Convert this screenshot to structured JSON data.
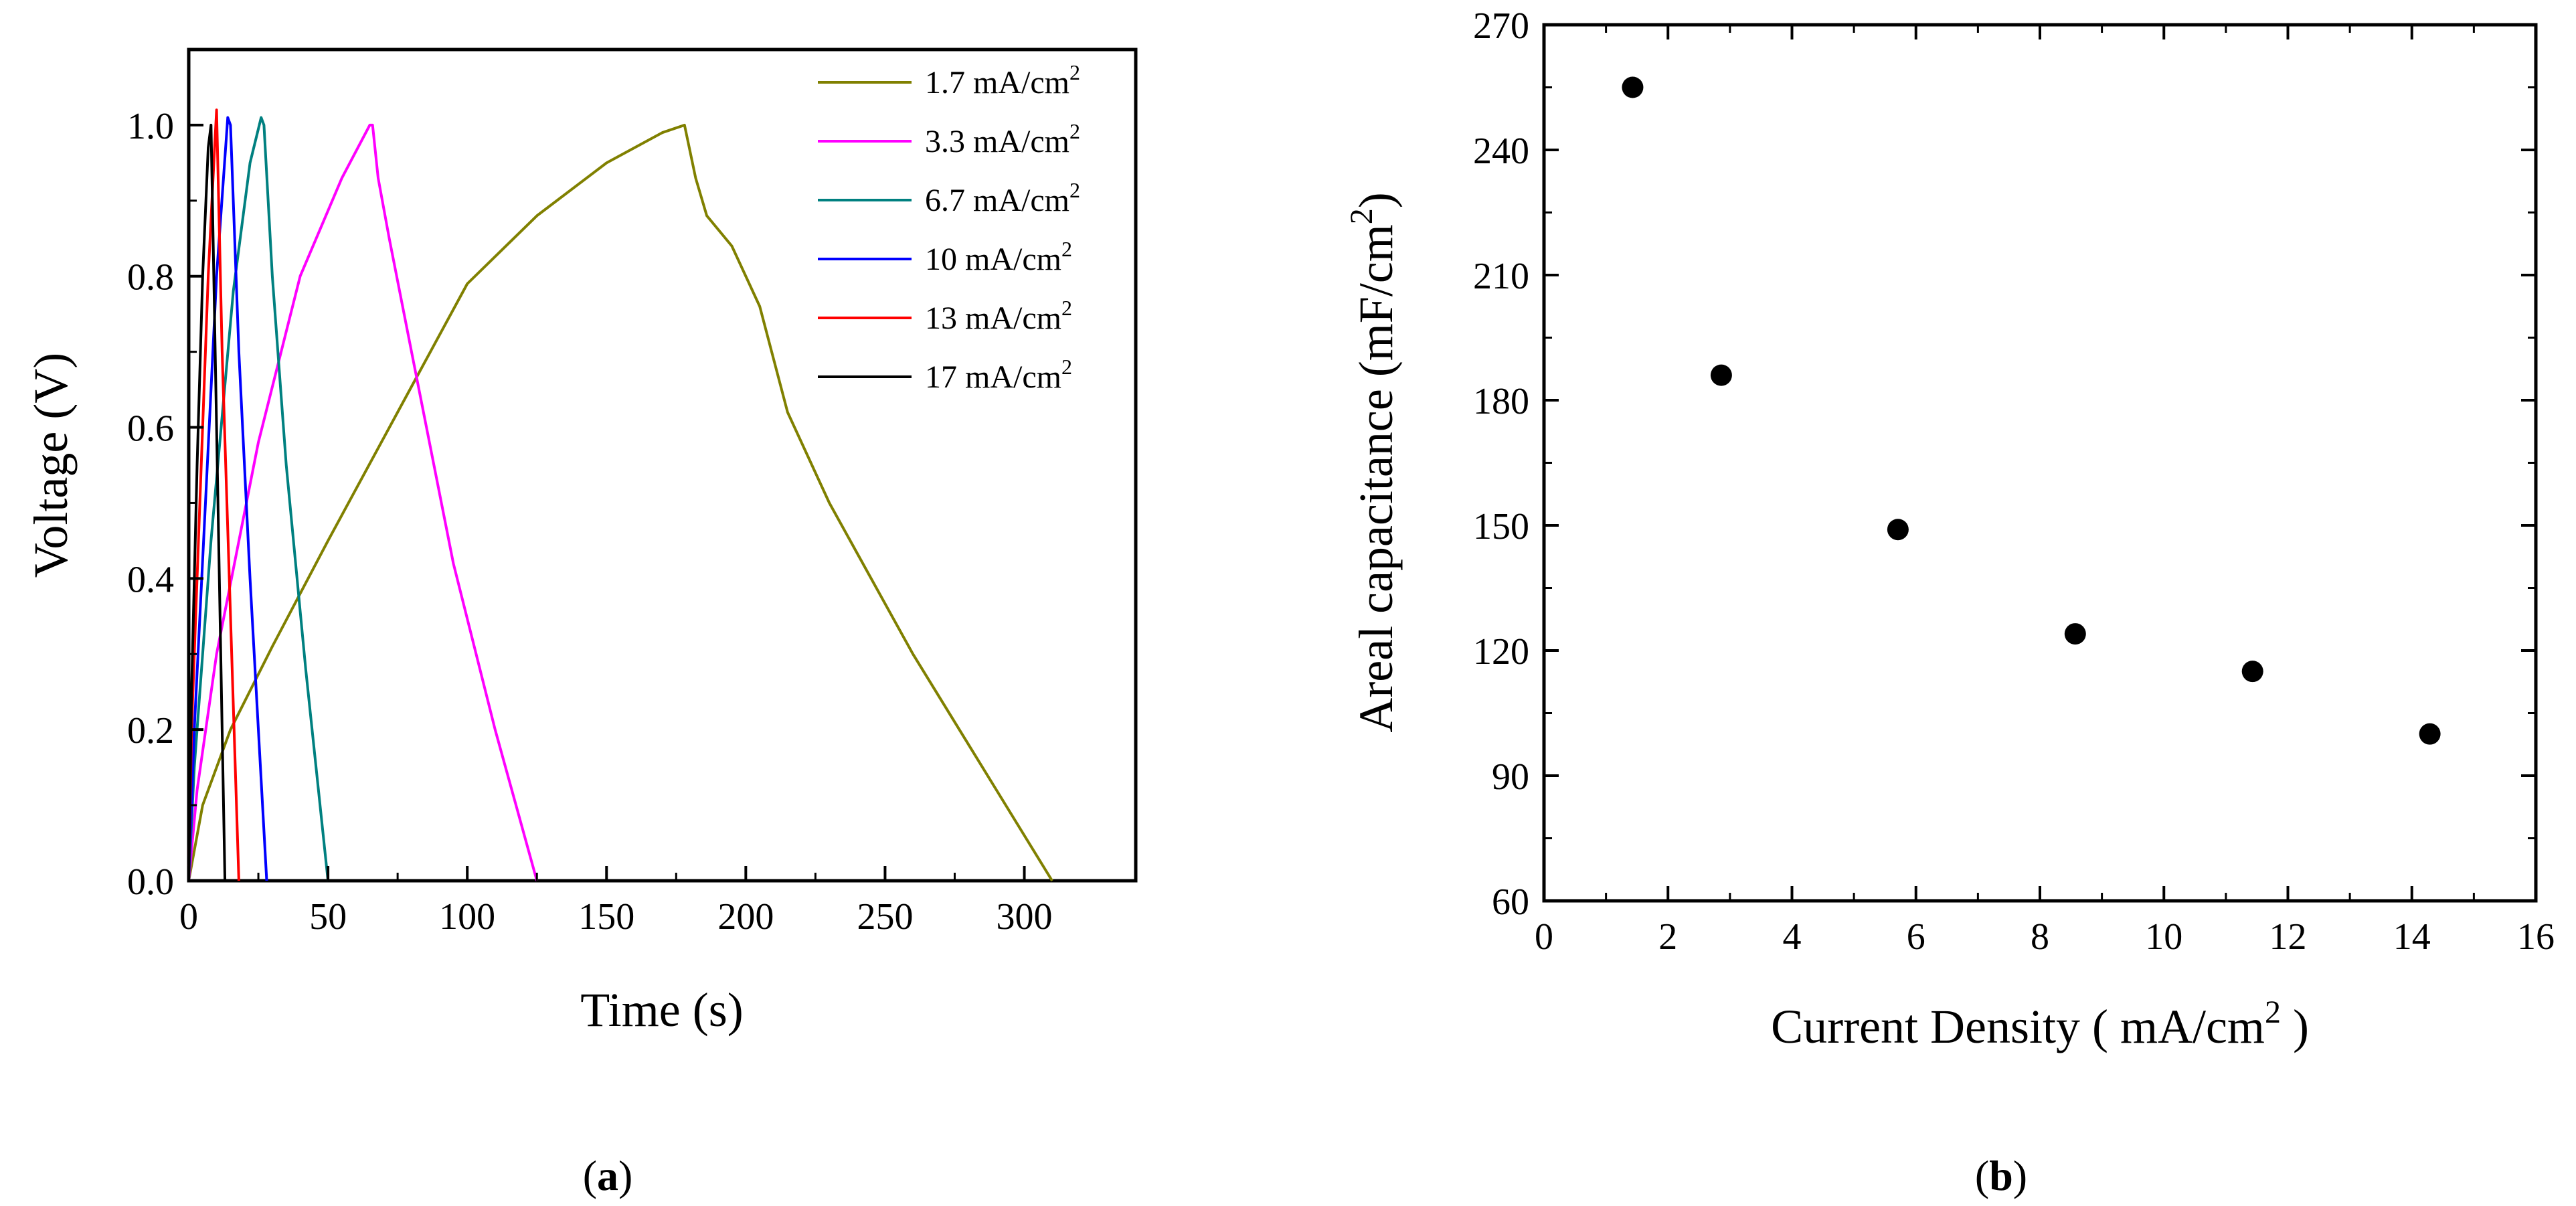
{
  "chart_data": [
    {
      "type": "line",
      "panel_label": "a",
      "xlabel": "Time (s)",
      "ylabel": "Voltage (V)",
      "xlim": [
        0,
        340
      ],
      "ylim": [
        0,
        1.1
      ],
      "x_ticks": [
        0,
        50,
        100,
        150,
        200,
        250,
        300
      ],
      "y_ticks": [
        0.0,
        0.2,
        0.4,
        0.6,
        0.8,
        1.0
      ],
      "legend_position": "top-right",
      "series": [
        {
          "name": "1.7 mA/cm",
          "sup": "2",
          "color": "#808000",
          "x": [
            0,
            5,
            15,
            30,
            50,
            75,
            100,
            125,
            150,
            170,
            178,
            182,
            186,
            195,
            205,
            215,
            230,
            260,
            290,
            310
          ],
          "y": [
            0,
            0.1,
            0.2,
            0.31,
            0.45,
            0.62,
            0.79,
            0.88,
            0.95,
            0.99,
            1.0,
            0.93,
            0.88,
            0.84,
            0.76,
            0.62,
            0.5,
            0.3,
            0.12,
            0
          ]
        },
        {
          "name": "3.3 mA/cm",
          "sup": "2",
          "color": "#ff00ff",
          "x": [
            0,
            3,
            10,
            25,
            40,
            55,
            65,
            66,
            68,
            72,
            80,
            95,
            110,
            125
          ],
          "y": [
            0,
            0.12,
            0.3,
            0.58,
            0.8,
            0.93,
            1.0,
            1.0,
            0.93,
            0.85,
            0.7,
            0.42,
            0.2,
            0
          ]
        },
        {
          "name": "6.7 mA/cm",
          "sup": "2",
          "color": "#008080",
          "x": [
            0,
            2,
            8,
            16,
            22,
            26,
            27,
            30,
            35,
            42,
            50
          ],
          "y": [
            0,
            0.15,
            0.45,
            0.78,
            0.95,
            1.01,
            1.0,
            0.8,
            0.55,
            0.28,
            0
          ]
        },
        {
          "name": "10  mA/cm",
          "sup": "2",
          "color": "#0000ff",
          "x": [
            0,
            2,
            6,
            10,
            14,
            15,
            18,
            22,
            28
          ],
          "y": [
            0,
            0.2,
            0.5,
            0.8,
            1.01,
            1.0,
            0.7,
            0.4,
            0
          ]
        },
        {
          "name": "13  mA/cm",
          "sup": "2",
          "color": "#ff0000",
          "x": [
            0,
            1,
            4,
            7,
            9,
            10,
            12,
            15,
            18
          ],
          "y": [
            0,
            0.2,
            0.5,
            0.8,
            0.95,
            1.02,
            0.7,
            0.35,
            0
          ]
        },
        {
          "name": "17  mA/cm",
          "sup": "2",
          "color": "#000000",
          "x": [
            0,
            1,
            3,
            5,
            7,
            8,
            10,
            12,
            13
          ],
          "y": [
            0,
            0.25,
            0.55,
            0.8,
            0.97,
            1.0,
            0.6,
            0.2,
            0
          ]
        }
      ]
    },
    {
      "type": "scatter",
      "panel_label": "b",
      "xlabel": "Current Density ( mA/cm",
      "xlabel_sup": "2",
      "xlabel_end": " )",
      "ylabel": "Areal capacitance (mF/cm",
      "ylabel_sup": "2",
      "ylabel_end": ")",
      "xlim": [
        0,
        16
      ],
      "ylim": [
        60,
        270
      ],
      "x_ticks": [
        0,
        2,
        4,
        6,
        8,
        10,
        12,
        14,
        16
      ],
      "y_ticks": [
        60,
        90,
        120,
        150,
        180,
        210,
        240,
        270
      ],
      "series": [
        {
          "name": "areal capacitance",
          "color": "#000000",
          "x": [
            1.43,
            2.86,
            5.71,
            8.57,
            11.43,
            14.29
          ],
          "y": [
            255,
            186,
            149,
            124,
            115,
            100
          ]
        }
      ]
    }
  ]
}
